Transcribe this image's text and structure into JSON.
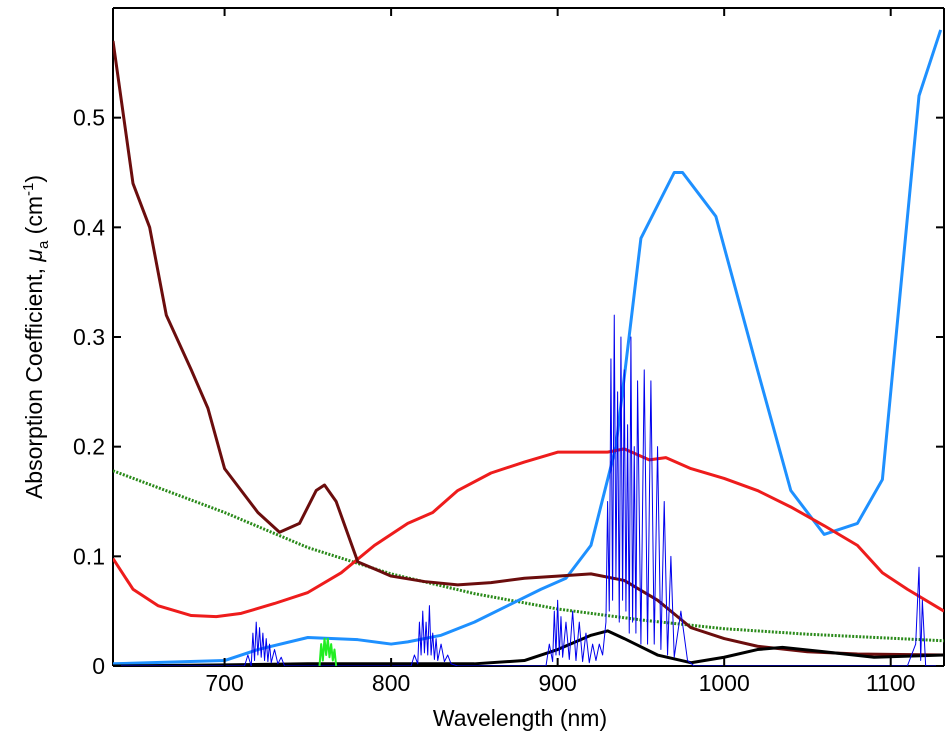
{
  "chart_data": {
    "type": "line",
    "xlabel": "Wavelength (nm)",
    "ylabel": [
      "Absorption Coefficient, ",
      "μ",
      "a",
      " (cm",
      "-1",
      ")"
    ],
    "xlim": [
      633,
      1132
    ],
    "ylim": [
      0,
      0.6
    ],
    "xticks": [
      700,
      800,
      900,
      1000,
      1100
    ],
    "yticks": [
      0,
      0.1,
      0.2,
      0.3,
      0.4,
      0.5
    ],
    "series": [
      {
        "color": "#2a8a1a",
        "style": "dotted",
        "width": 3,
        "x": [
          633,
          700,
          750,
          800,
          850,
          900,
          950,
          1000,
          1050,
          1132
        ],
        "values": [
          0.178,
          0.14,
          0.108,
          0.084,
          0.066,
          0.052,
          0.042,
          0.034,
          0.029,
          0.023
        ]
      },
      {
        "color": "#1e90ff",
        "style": "solid",
        "width": 3,
        "x": [
          633,
          700,
          720,
          750,
          780,
          800,
          810,
          830,
          850,
          870,
          890,
          905,
          920,
          935,
          950,
          970,
          975,
          985,
          995,
          1020,
          1040,
          1060,
          1080,
          1095,
          1117,
          1130
        ],
        "values": [
          0.002,
          0.005,
          0.015,
          0.026,
          0.024,
          0.02,
          0.022,
          0.028,
          0.04,
          0.055,
          0.07,
          0.08,
          0.11,
          0.2,
          0.39,
          0.45,
          0.45,
          0.43,
          0.41,
          0.27,
          0.16,
          0.12,
          0.13,
          0.17,
          0.52,
          0.58
        ]
      },
      {
        "color": "#ee1c1c",
        "style": "solid",
        "width": 3,
        "x": [
          633,
          645,
          660,
          680,
          695,
          710,
          730,
          750,
          770,
          790,
          810,
          825,
          840,
          860,
          880,
          900,
          930,
          940,
          955,
          965,
          980,
          1000,
          1020,
          1040,
          1060,
          1080,
          1095,
          1110,
          1132
        ],
        "values": [
          0.098,
          0.07,
          0.055,
          0.046,
          0.045,
          0.048,
          0.057,
          0.067,
          0.085,
          0.11,
          0.13,
          0.14,
          0.16,
          0.176,
          0.186,
          0.195,
          0.195,
          0.198,
          0.188,
          0.19,
          0.18,
          0.171,
          0.16,
          0.145,
          0.128,
          0.11,
          0.085,
          0.07,
          0.05
        ]
      },
      {
        "color": "#6b0d0d",
        "style": "solid",
        "width": 3,
        "x": [
          633,
          645,
          655,
          665,
          680,
          690,
          700,
          720,
          733,
          745,
          755,
          760,
          767,
          780,
          800,
          820,
          840,
          860,
          880,
          900,
          920,
          940,
          960,
          980,
          1000,
          1020,
          1050,
          1080,
          1132
        ],
        "values": [
          0.57,
          0.44,
          0.4,
          0.32,
          0.27,
          0.235,
          0.18,
          0.14,
          0.122,
          0.13,
          0.16,
          0.165,
          0.15,
          0.095,
          0.082,
          0.077,
          0.074,
          0.076,
          0.08,
          0.082,
          0.084,
          0.078,
          0.06,
          0.035,
          0.025,
          0.018,
          0.013,
          0.011,
          0.01
        ]
      },
      {
        "color": "#000000",
        "style": "solid",
        "width": 3,
        "x": [
          633,
          700,
          750,
          800,
          850,
          880,
          900,
          920,
          930,
          940,
          960,
          980,
          1000,
          1020,
          1035,
          1060,
          1090,
          1132
        ],
        "values": [
          0,
          0.001,
          0.002,
          0.002,
          0.002,
          0.005,
          0.015,
          0.028,
          0.032,
          0.025,
          0.01,
          0.003,
          0.008,
          0.015,
          0.017,
          0.013,
          0.008,
          0.01
        ]
      },
      {
        "color": "#0000ee",
        "style": "solid",
        "width": 1,
        "x": [
          633,
          712,
          714,
          716,
          717,
          718,
          719,
          720,
          721,
          722,
          723,
          724,
          725,
          726,
          727,
          728,
          730,
          732,
          734,
          736,
          812,
          814,
          816,
          817,
          818,
          819,
          820,
          821,
          822,
          823,
          824,
          825,
          826,
          827,
          828,
          830,
          832,
          834,
          836,
          840,
          893,
          895,
          897,
          898,
          899,
          900,
          901,
          902,
          903,
          905,
          907,
          909,
          911,
          913,
          915,
          917,
          919,
          921,
          923,
          925,
          927,
          929,
          930,
          931,
          932,
          933,
          934,
          935,
          936,
          937,
          938,
          939,
          940,
          941,
          942,
          943,
          944,
          945,
          946,
          947,
          948,
          950,
          952,
          954,
          956,
          958,
          960,
          962,
          964,
          966,
          968,
          970,
          974,
          978,
          982,
          1110,
          1115,
          1117,
          1118,
          1119,
          1121,
          1132
        ],
        "values": [
          0,
          0,
          0.01,
          0,
          0.03,
          0.005,
          0.04,
          0.01,
          0.035,
          0.008,
          0.03,
          0.005,
          0.025,
          0.004,
          0.02,
          0.003,
          0.015,
          0.002,
          0.008,
          0,
          0,
          0.01,
          0.002,
          0.04,
          0.01,
          0.05,
          0.012,
          0.04,
          0.01,
          0.055,
          0.01,
          0.03,
          0.006,
          0.025,
          0.005,
          0.02,
          0.004,
          0.01,
          0.002,
          0,
          0,
          0.02,
          0.004,
          0.05,
          0.01,
          0.06,
          0.01,
          0.045,
          0.008,
          0.04,
          0.006,
          0.05,
          0.005,
          0.04,
          0.004,
          0.03,
          0.003,
          0.02,
          0.005,
          0.02,
          0.01,
          0.04,
          0.15,
          0.05,
          0.28,
          0.06,
          0.32,
          0.08,
          0.25,
          0.04,
          0.3,
          0.06,
          0.27,
          0.05,
          0.22,
          0.03,
          0.3,
          0.04,
          0.2,
          0.03,
          0.26,
          0.02,
          0.27,
          0.02,
          0.26,
          0.02,
          0.2,
          0.015,
          0.15,
          0.01,
          0.1,
          0.008,
          0.05,
          0.005,
          0,
          0,
          0.02,
          0.09,
          0.005,
          0.06,
          0,
          0
        ]
      },
      {
        "color": "#22ee22",
        "style": "solid",
        "width": 2,
        "x": [
          757,
          758,
          759,
          760,
          761,
          762,
          763,
          764,
          765,
          766,
          767
        ],
        "values": [
          0,
          0.02,
          0.005,
          0.025,
          0.01,
          0.025,
          0.008,
          0.02,
          0.005,
          0.015,
          0
        ]
      }
    ]
  }
}
